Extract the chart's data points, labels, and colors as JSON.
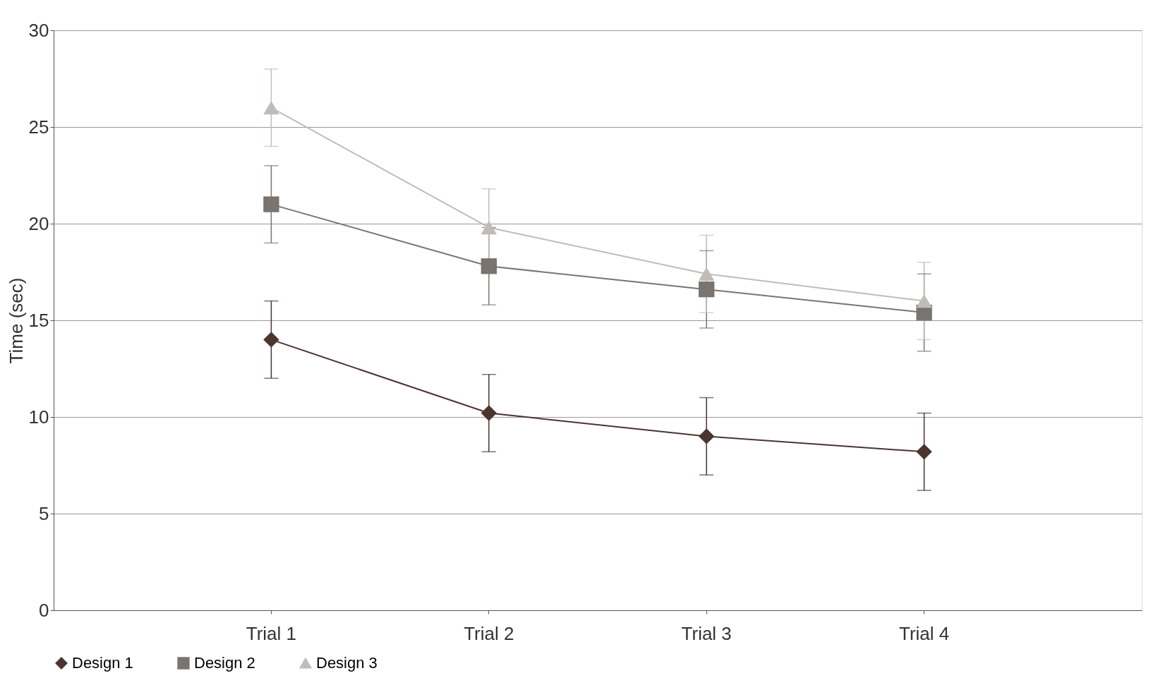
{
  "chart_data": {
    "type": "line",
    "ylabel": "Time (sec)",
    "categories": [
      "Trial 1",
      "Trial 2",
      "Trial 3",
      "Trial 4"
    ],
    "series": [
      {
        "name": "Design 1",
        "color": "#4a3530",
        "marker": "diamond",
        "values": [
          14,
          10.2,
          9,
          8.2
        ],
        "errors": [
          2,
          2,
          2,
          2
        ]
      },
      {
        "name": "Design 2",
        "color": "#7a7470",
        "marker": "square",
        "values": [
          21,
          17.8,
          16.6,
          15.4
        ],
        "errors": [
          2,
          2,
          2,
          2
        ]
      },
      {
        "name": "Design 3",
        "color": "#c0bcb8",
        "marker": "triangle",
        "values": [
          26,
          19.8,
          17.4,
          16
        ],
        "errors": [
          2,
          2,
          2,
          2
        ]
      }
    ],
    "ylim": [
      0,
      30
    ],
    "yticks": [
      0,
      5,
      10,
      15,
      20,
      25,
      30
    ],
    "grid": "y",
    "legend": "bottom",
    "line_style": "solid"
  }
}
